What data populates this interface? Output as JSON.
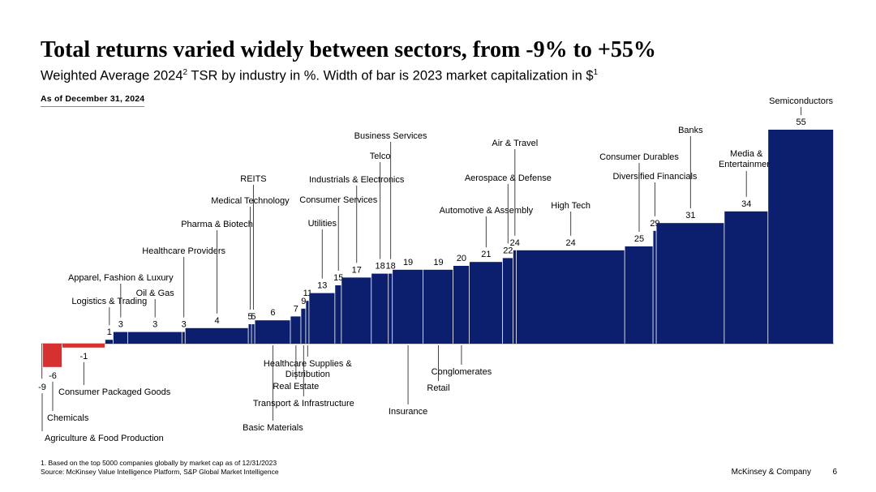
{
  "header": {
    "title": "Total returns varied widely between sectors, from -9% to +55%",
    "subtitle_main": "Weighted Average 2024",
    "subtitle_sup1": "2",
    "subtitle_rest": " TSR by industry in %. Width of bar is 2023 market capitalization in $",
    "subtitle_sup2": "1",
    "as_of": "As of December 31, 2024"
  },
  "footer": {
    "note": "1. Based on the top 5000 companies globally by market cap as of 12/31/2023",
    "source": "Source: McKinsey Value Intelligence Platform, S&P Global Market Intelligence",
    "brand": "McKinsey & Company",
    "page": "6"
  },
  "colors": {
    "positive": "#0b1f6e",
    "negative": "#d63031",
    "leader": "#444444",
    "baseline": "#999999"
  },
  "chart_data": {
    "type": "bar",
    "variant": "marimekko (variable-width bars)",
    "title": "Weighted Average 2024 TSR by industry in %",
    "width_measure": "2023 market capitalization in $",
    "y_unit": "%",
    "ylim": [
      -10,
      56
    ],
    "categories": [
      "Agriculture & Food Production",
      "Chemicals",
      "Consumer Packaged Goods",
      "Logistics & Trading",
      "Apparel, Fashion & Luxury",
      "Oil & Gas",
      "Healthcare Providers",
      "Pharma & Biotech",
      "Medical Technology",
      "REITS",
      "Basic Materials",
      "Real Estate",
      "Transport & Infrastructure",
      "Healthcare Supplies & Distribution",
      "Utilities",
      "Consumer Services",
      "Industrials & Electronics",
      "Telco",
      "Business Services",
      "Insurance",
      "Retail",
      "Conglomerates",
      "Automotive & Assembly",
      "Aerospace & Defense",
      "Air & Travel",
      "High Tech",
      "Consumer Durables",
      "Diversified Financials",
      "Banks",
      "Media & Entertainment",
      "Semiconductors"
    ],
    "values": [
      -9,
      -6,
      -1,
      1,
      3,
      3,
      3,
      4,
      5,
      5,
      6,
      7,
      9,
      11,
      13,
      15,
      17,
      18,
      18,
      19,
      19,
      20,
      21,
      22,
      24,
      24,
      25,
      29,
      31,
      34,
      55
    ],
    "widths_relative": [
      2,
      24,
      53,
      10,
      18,
      67,
      4,
      78,
      4,
      4,
      44,
      13,
      6,
      4,
      32,
      8,
      37,
      21,
      5,
      38,
      37,
      20,
      41,
      13,
      4,
      134,
      35,
      4,
      84,
      54,
      81
    ],
    "label_placement": [
      "below",
      "below",
      "below",
      "above",
      "above",
      "above",
      "above",
      "above",
      "above",
      "above",
      "below",
      "below",
      "below",
      "below",
      "above",
      "above",
      "above",
      "above",
      "above",
      "below",
      "below",
      "below",
      "above",
      "above",
      "above",
      "above",
      "above",
      "above",
      "above",
      "above",
      "above"
    ]
  }
}
